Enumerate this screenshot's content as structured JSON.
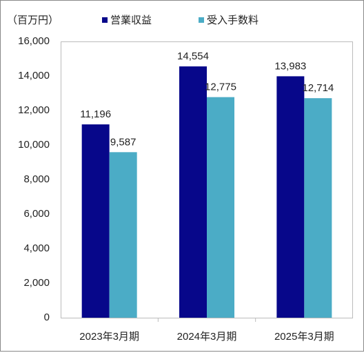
{
  "chart_data": {
    "type": "bar",
    "unit_label": "（百万円）",
    "categories": [
      "2023年3月期",
      "2024年3月期",
      "2025年3月期"
    ],
    "series": [
      {
        "name": "営業収益",
        "color": "#07078a",
        "values": [
          11196,
          14554,
          13983
        ],
        "value_labels": [
          "11,196",
          "14,554",
          "13,983"
        ]
      },
      {
        "name": "受入手数料",
        "color": "#4bacc6",
        "values": [
          9587,
          12775,
          12714
        ],
        "value_labels": [
          "9,587",
          "12,775",
          "12,714"
        ]
      }
    ],
    "ylim": [
      0,
      16000
    ],
    "yticks": [
      0,
      {
        "value": 2000,
        "label": "2,000"
      },
      {
        "value": 4000,
        "label": "4,000"
      },
      {
        "value": 6000,
        "label": "6,000"
      },
      {
        "value": 8000,
        "label": "8,000"
      },
      {
        "value": 10000,
        "label": "10,000"
      },
      {
        "value": 12000,
        "label": "12,000"
      },
      {
        "value": 14000,
        "label": "14,000"
      },
      {
        "value": 16000,
        "label": "16,000"
      }
    ],
    "grid": false
  }
}
